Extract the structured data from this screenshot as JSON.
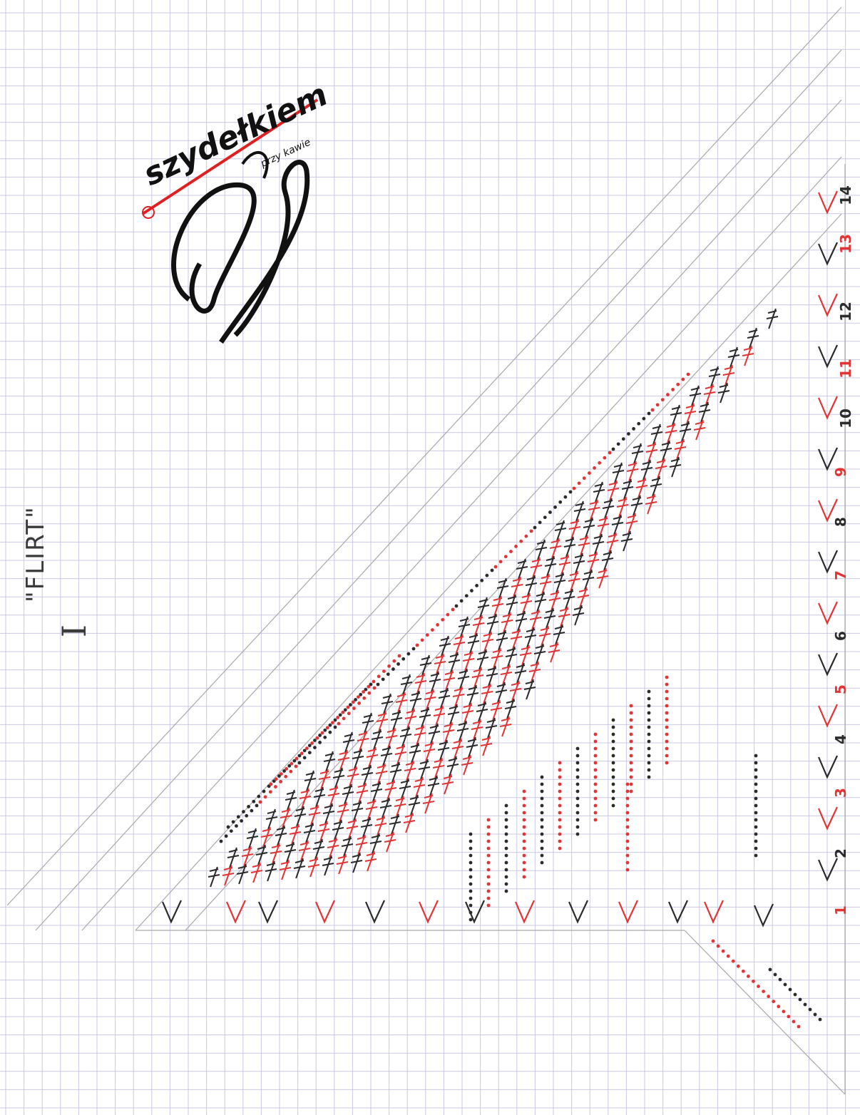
{
  "title": "\"FLIRT\"",
  "subtitle": "I",
  "logo": {
    "word": "szydełkiem",
    "sub": "przy kawie"
  },
  "row_numbers": [
    "1",
    "2",
    "3",
    "4",
    "5",
    "6",
    "7",
    "8",
    "9",
    "10",
    "11",
    "12",
    "13",
    "14"
  ],
  "colors": {
    "grid": "#c9c9e6",
    "guide": "#a9a9a9",
    "black": "#2b2b2b",
    "red": "#e23434"
  }
}
